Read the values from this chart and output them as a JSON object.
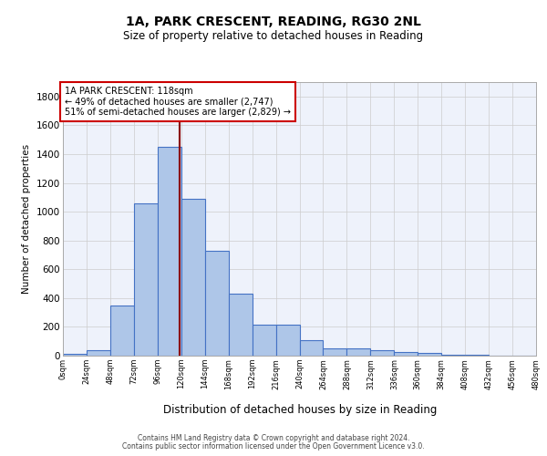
{
  "title_line1": "1A, PARK CRESCENT, READING, RG30 2NL",
  "title_line2": "Size of property relative to detached houses in Reading",
  "xlabel": "Distribution of detached houses by size in Reading",
  "ylabel": "Number of detached properties",
  "footnote_line1": "Contains HM Land Registry data © Crown copyright and database right 2024.",
  "footnote_line2": "Contains public sector information licensed under the Open Government Licence v3.0.",
  "annotation_line1": "1A PARK CRESCENT: 118sqm",
  "annotation_line2": "← 49% of detached houses are smaller (2,747)",
  "annotation_line3": "51% of semi-detached houses are larger (2,829) →",
  "bar_edges": [
    0,
    24,
    48,
    72,
    96,
    120,
    144,
    168,
    192,
    216,
    240,
    264,
    288,
    312,
    336,
    360,
    384,
    408,
    432,
    456,
    480
  ],
  "bar_heights": [
    10,
    35,
    350,
    1055,
    1450,
    1090,
    730,
    430,
    215,
    215,
    105,
    50,
    50,
    40,
    25,
    20,
    5,
    5,
    2,
    2
  ],
  "bar_color": "#aec6e8",
  "bar_edge_color": "#4472c4",
  "bar_linewidth": 0.8,
  "vline_x": 118,
  "vline_color": "#8b0000",
  "vline_linewidth": 1.5,
  "annotation_box_edge_color": "#cc0000",
  "annotation_box_facecolor": "white",
  "ylim": [
    0,
    1900
  ],
  "yticks": [
    0,
    200,
    400,
    600,
    800,
    1000,
    1200,
    1400,
    1600,
    1800
  ],
  "grid_color": "#cccccc",
  "bg_color": "#eef2fb",
  "tick_labels": [
    "0sqm",
    "24sqm",
    "48sqm",
    "72sqm",
    "96sqm",
    "120sqm",
    "144sqm",
    "168sqm",
    "192sqm",
    "216sqm",
    "240sqm",
    "264sqm",
    "288sqm",
    "312sqm",
    "336sqm",
    "360sqm",
    "384sqm",
    "408sqm",
    "432sqm",
    "456sqm",
    "480sqm"
  ]
}
